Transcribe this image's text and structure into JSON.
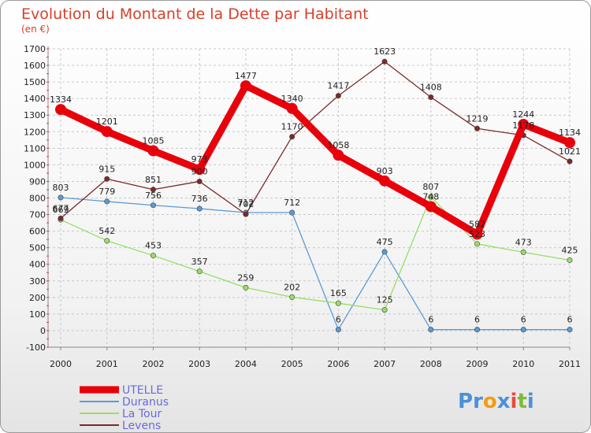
{
  "chart_data": {
    "type": "line",
    "title": "Evolution du Montant de la Dette par Habitant",
    "subtitle": "(en €)",
    "categories": [
      "2000",
      "2001",
      "2002",
      "2003",
      "2004",
      "2005",
      "2006",
      "2007",
      "2008",
      "2009",
      "2010",
      "2011"
    ],
    "ylim": [
      -100,
      1700
    ],
    "yticks": [
      -100,
      0,
      100,
      200,
      300,
      400,
      500,
      600,
      700,
      800,
      900,
      1000,
      1100,
      1200,
      1300,
      1400,
      1500,
      1600,
      1700
    ],
    "series": [
      {
        "name": "UTELLE",
        "color": "#e8000b",
        "values": [
          1334,
          1201,
          1085,
          973,
          1477,
          1340,
          1058,
          903,
          748,
          582,
          1244,
          1134
        ]
      },
      {
        "name": "Duranus",
        "color": "#5b9bd5",
        "values": [
          803,
          779,
          756,
          736,
          712,
          712,
          6,
          475,
          6,
          6,
          6,
          6
        ]
      },
      {
        "name": "La Tour",
        "color": "#99dd66",
        "values": [
          669,
          542,
          453,
          357,
          259,
          202,
          165,
          125,
          807,
          523,
          473,
          425
        ]
      },
      {
        "name": "Levens",
        "color": "#7b2a2a",
        "values": [
          677,
          915,
          851,
          900,
          702,
          1170,
          1417,
          1623,
          1408,
          1219,
          1178,
          1021
        ]
      }
    ],
    "label_order": [
      "Levens",
      "La Tour",
      "Duranus",
      "UTELLE"
    ]
  },
  "legend": {
    "items": [
      "UTELLE",
      "Duranus",
      "La Tour",
      "Levens"
    ]
  },
  "logo": {
    "letters": [
      "P",
      "r",
      "o",
      "x",
      "i",
      "t",
      "i"
    ],
    "colors": [
      "#4a90d9",
      "#4a90d9",
      "#f39c12",
      "#4a90d9",
      "#e74c3c",
      "#7fba3a",
      "#4a90d9"
    ]
  }
}
